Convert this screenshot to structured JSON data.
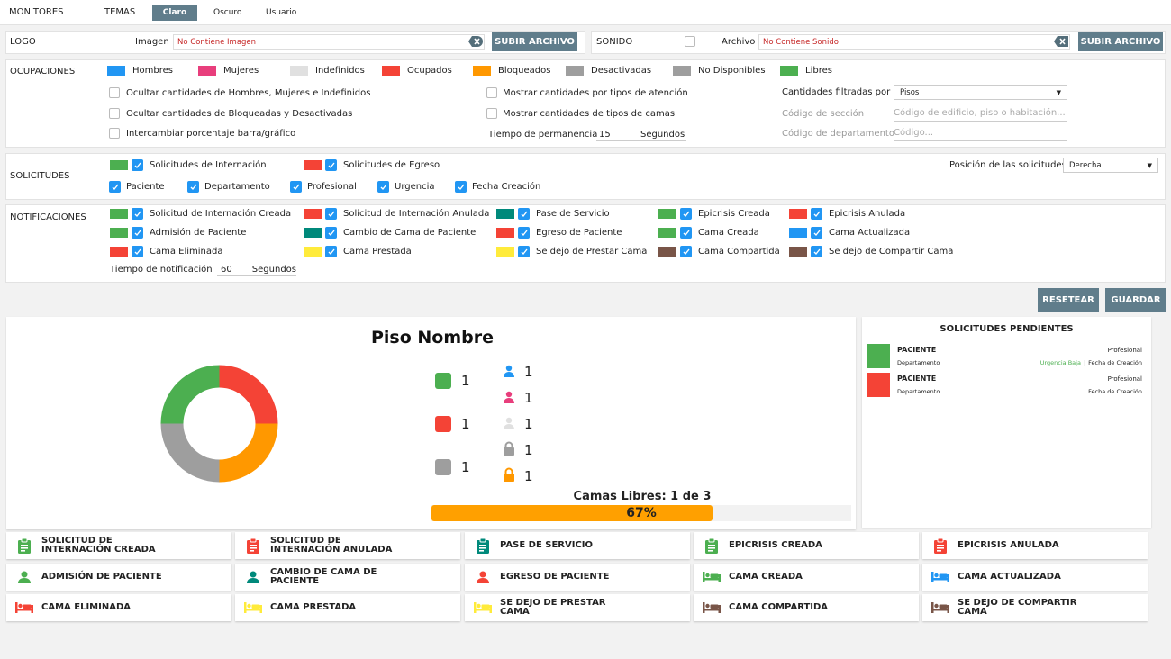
{
  "nav": {
    "monitores": "MONITORES",
    "temas": "TEMAS",
    "claro": "Claro",
    "oscuro": "Oscuro",
    "usuario": "Usuario"
  },
  "logo": {
    "label": "LOGO",
    "imagen_label": "Imagen",
    "imagen_value": "No Contiene Imagen",
    "upload": "SUBIR ARCHIVO"
  },
  "sonido": {
    "label": "SONIDO",
    "archivo_label": "Archivo",
    "archivo_value": "No Contiene Sonido",
    "upload": "SUBIR ARCHIVO"
  },
  "ocupaciones": {
    "label": "OCUPACIONES",
    "legend": [
      {
        "label": "Hombres",
        "color": "#2196f3"
      },
      {
        "label": "Mujeres",
        "color": "#e83e7c"
      },
      {
        "label": "Indefinidos",
        "color": "#e0e0e0"
      },
      {
        "label": "Ocupados",
        "color": "#f44336"
      },
      {
        "label": "Bloqueados",
        "color": "#ff9800"
      },
      {
        "label": "Desactivadas",
        "color": "#9e9e9e"
      },
      {
        "label": "No Disponibles",
        "color": "#9e9e9e"
      },
      {
        "label": "Libres",
        "color": "#4caf50"
      }
    ],
    "opt1": "Ocultar cantidades de Hombres, Mujeres e Indefinidos",
    "opt2": "Ocultar cantidades de Bloqueadas y Desactivadas",
    "opt3": "Intercambiar porcentaje barra/gráfico",
    "opt4": "Mostrar cantidades por tipos de atención",
    "opt5": "Mostrar cantidades de tipos de camas",
    "tiempo_label": "Tiempo de permanencia",
    "tiempo_value": "15",
    "tiempo_unit": "Segundos",
    "filtradas_label": "Cantidades filtradas por",
    "filtradas_value": "Pisos",
    "seccion_label": "Código de sección",
    "seccion_placeholder": "Código de edificio, piso o habitación...",
    "depto_label": "Código de departamento",
    "depto_placeholder": "Código..."
  },
  "solicitudes": {
    "label": "SOLICITUDES",
    "internacion": "Solicitudes de Internación",
    "egreso": "Solicitudes de Egreso",
    "paciente": "Paciente",
    "departamento": "Departamento",
    "profesional": "Profesional",
    "urgencia": "Urgencia",
    "fecha": "Fecha Creación",
    "posicion_label": "Posición de las solicitudes",
    "posicion_value": "Derecha"
  },
  "notificaciones": {
    "label": "NOTIFICACIONES",
    "items": [
      {
        "label": "Solicitud de Internación Creada",
        "color": "#4caf50"
      },
      {
        "label": "Solicitud de Internación Anulada",
        "color": "#f44336"
      },
      {
        "label": "Pase de Servicio",
        "color": "#00897b"
      },
      {
        "label": "Epicrisis Creada",
        "color": "#4caf50"
      },
      {
        "label": "Epicrisis Anulada",
        "color": "#f44336"
      },
      {
        "label": "Admisión de Paciente",
        "color": "#4caf50"
      },
      {
        "label": "Cambio de Cama de Paciente",
        "color": "#00897b"
      },
      {
        "label": "Egreso de Paciente",
        "color": "#f44336"
      },
      {
        "label": "Cama Creada",
        "color": "#4caf50"
      },
      {
        "label": "Cama Actualizada",
        "color": "#2196f3"
      },
      {
        "label": "Cama Eliminada",
        "color": "#f44336"
      },
      {
        "label": "Cama Prestada",
        "color": "#ffeb3b"
      },
      {
        "label": "Se dejo de Prestar Cama",
        "color": "#ffeb3b"
      },
      {
        "label": "Cama Compartida",
        "color": "#795548"
      },
      {
        "label": "Se dejo de Compartir Cama",
        "color": "#795548"
      }
    ],
    "tiempo_label": "Tiempo de notificación",
    "tiempo_value": "60",
    "tiempo_unit": "Segundos"
  },
  "actions": {
    "resetear": "RESETEAR",
    "guardar": "GUARDAR"
  },
  "preview": {
    "title": "Piso Nombre",
    "counts": {
      "libres": "1",
      "ocupados": "1",
      "desactivadas": "1",
      "hombres": "1",
      "mujeres": "1",
      "indefinidos": "1",
      "desactivadas_lock": "1",
      "bloqueados": "1"
    },
    "camas_libres": "Camas Libres: 1 de 3",
    "percent": "67%"
  },
  "chart_data": {
    "type": "pie",
    "donut": true,
    "slices": [
      {
        "value": 1,
        "color": "#f44336"
      },
      {
        "value": 1,
        "color": "#ff9800"
      },
      {
        "value": 1,
        "color": "#9e9e9e"
      },
      {
        "value": 1,
        "color": "#4caf50"
      }
    ],
    "progress_fraction": 0.67
  },
  "pendientes": {
    "title": "SOLICITUDES PENDIENTES",
    "items": [
      {
        "paciente": "PACIENTE",
        "profesional": "Profesional",
        "departamento": "Departamento",
        "urgencia": "Urgencia Baja",
        "fecha": "Fecha de Creación",
        "color": "#4caf50"
      },
      {
        "paciente": "PACIENTE",
        "profesional": "Profesional",
        "departamento": "Departamento",
        "fecha": "Fecha de Creación",
        "color": "#f44336"
      }
    ]
  },
  "cards": [
    {
      "label": "SOLICITUD DE\nINTERNACIÓN CREADA",
      "icon": "clipboard-icon",
      "color": "#4caf50"
    },
    {
      "label": "SOLICITUD DE\nINTERNACIÓN ANULADA",
      "icon": "clipboard-icon",
      "color": "#f44336"
    },
    {
      "label": "PASE DE SERVICIO",
      "icon": "clipboard-icon",
      "color": "#00897b"
    },
    {
      "label": "EPICRISIS CREADA",
      "icon": "clipboard-icon",
      "color": "#4caf50"
    },
    {
      "label": "EPICRISIS ANULADA",
      "icon": "clipboard-icon",
      "color": "#f44336"
    },
    {
      "label": "ADMISIÓN DE PACIENTE",
      "icon": "person-icon",
      "color": "#4caf50"
    },
    {
      "label": "CAMBIO DE CAMA DE\nPACIENTE",
      "icon": "person-icon",
      "color": "#00897b"
    },
    {
      "label": "EGRESO DE PACIENTE",
      "icon": "person-icon",
      "color": "#f44336"
    },
    {
      "label": "CAMA CREADA",
      "icon": "bed-icon",
      "color": "#4caf50"
    },
    {
      "label": "CAMA ACTUALIZADA",
      "icon": "bed-icon",
      "color": "#2196f3"
    },
    {
      "label": "CAMA ELIMINADA",
      "icon": "bed-icon",
      "color": "#f44336"
    },
    {
      "label": "CAMA PRESTADA",
      "icon": "bed-icon",
      "color": "#ffeb3b"
    },
    {
      "label": "SE DEJO DE PRESTAR\nCAMA",
      "icon": "bed-icon",
      "color": "#ffeb3b"
    },
    {
      "label": "CAMA COMPARTIDA",
      "icon": "bed-icon",
      "color": "#795548"
    },
    {
      "label": "SE DEJO DE COMPARTIR\nCAMA",
      "icon": "bed-icon",
      "color": "#795548"
    }
  ]
}
